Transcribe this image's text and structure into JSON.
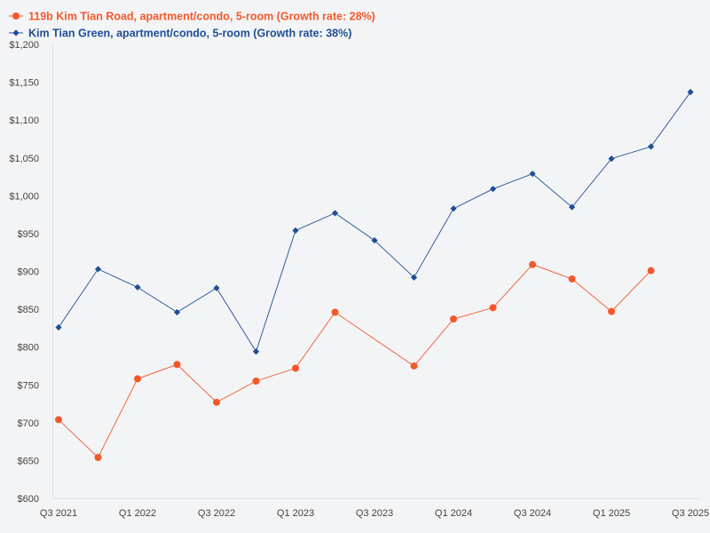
{
  "chart_data": {
    "type": "line",
    "title": "",
    "xlabel": "",
    "ylabel": "",
    "ylim": [
      600,
      1200
    ],
    "y_ticks": [
      600,
      650,
      700,
      750,
      800,
      850,
      900,
      950,
      1000,
      1050,
      1100,
      1150,
      1200
    ],
    "y_tick_labels": [
      "$600",
      "$650",
      "$700",
      "$750",
      "$800",
      "$850",
      "$900",
      "$950",
      "$1,000",
      "$1,050",
      "$1,100",
      "$1,150",
      "$1,200"
    ],
    "x_tick_labels": [
      "Q3 2021",
      "Q1 2022",
      "Q3 2022",
      "Q1 2023",
      "Q3 2023",
      "Q1 2024",
      "Q3 2024",
      "Q1 2025",
      "Q3 2025"
    ],
    "x_tick_indices": [
      0,
      2,
      4,
      6,
      8,
      10,
      12,
      14,
      16
    ],
    "num_periods": 17,
    "legend_position": "top-left",
    "series": [
      {
        "name": "119b Kim Tian Road, apartment/condo, 5-room (Growth rate: 28%)",
        "color": "#f4582a",
        "marker": "circle",
        "points": [
          {
            "i": 0,
            "y": 704
          },
          {
            "i": 1,
            "y": 654
          },
          {
            "i": 2,
            "y": 758
          },
          {
            "i": 3,
            "y": 777
          },
          {
            "i": 4,
            "y": 727
          },
          {
            "i": 5,
            "y": 755
          },
          {
            "i": 6,
            "y": 772
          },
          {
            "i": 7,
            "y": 846
          },
          {
            "i": 9,
            "y": 775
          },
          {
            "i": 10,
            "y": 837
          },
          {
            "i": 11,
            "y": 852
          },
          {
            "i": 12,
            "y": 909
          },
          {
            "i": 13,
            "y": 890
          },
          {
            "i": 14,
            "y": 847
          },
          {
            "i": 15,
            "y": 901
          }
        ]
      },
      {
        "name": "Kim Tian Green, apartment/condo, 5-room (Growth rate: 38%)",
        "color": "#1f4e96",
        "marker": "diamond",
        "points": [
          {
            "i": 0,
            "y": 826
          },
          {
            "i": 1,
            "y": 903
          },
          {
            "i": 2,
            "y": 879
          },
          {
            "i": 3,
            "y": 846
          },
          {
            "i": 4,
            "y": 878
          },
          {
            "i": 5,
            "y": 794
          },
          {
            "i": 6,
            "y": 954
          },
          {
            "i": 7,
            "y": 977
          },
          {
            "i": 8,
            "y": 941
          },
          {
            "i": 9,
            "y": 892
          },
          {
            "i": 10,
            "y": 983
          },
          {
            "i": 11,
            "y": 1009
          },
          {
            "i": 12,
            "y": 1029
          },
          {
            "i": 13,
            "y": 985
          },
          {
            "i": 14,
            "y": 1049
          },
          {
            "i": 15,
            "y": 1065
          },
          {
            "i": 16,
            "y": 1137
          }
        ]
      }
    ]
  }
}
